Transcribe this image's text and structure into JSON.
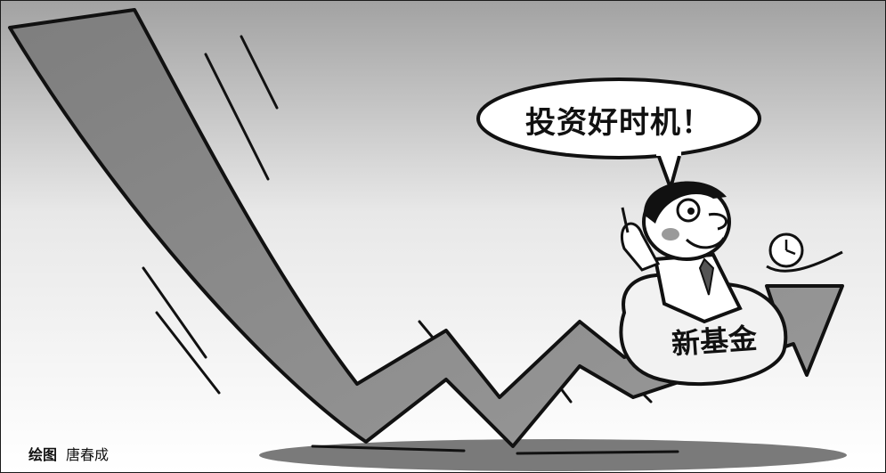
{
  "cartoon": {
    "speech_bubble_text": "投资好时机！",
    "bag_text": "新基金",
    "credit_label": "绘图",
    "credit_name": "唐春成"
  },
  "colors": {
    "arrow_fill": "#8c8c8c",
    "outline": "#111111",
    "background_top": "#9e9e9e",
    "background_bottom": "#ffffff",
    "shadow": "#7a7a7a"
  }
}
